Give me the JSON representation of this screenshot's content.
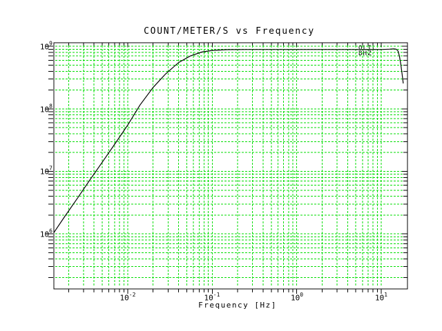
{
  "title": "COUNT/METER/S vs Frequency",
  "station_label": {
    "line1": "OLIL",
    "line2": "BHZ"
  },
  "x_axis": {
    "label": "Frequency [Hz]",
    "ticks": [
      {
        "base": "10",
        "exp": "-2"
      },
      {
        "base": "10",
        "exp": "-1"
      },
      {
        "base": "10",
        "exp": "0"
      },
      {
        "base": "10",
        "exp": "1"
      }
    ]
  },
  "y_axis": {
    "ticks": [
      {
        "base": "10",
        "exp": "9"
      },
      {
        "base": "10",
        "exp": "8"
      },
      {
        "base": "10",
        "exp": "7"
      },
      {
        "base": "10",
        "exp": "6"
      }
    ]
  },
  "colors": {
    "grid": "#00dd00",
    "curve": "#000000",
    "frame": "#000000",
    "background": "#ffffff"
  },
  "chart_data": {
    "type": "line",
    "title": "COUNT/METER/S vs Frequency",
    "xlabel": "Frequency [Hz]",
    "ylabel": "COUNT/METER/S",
    "x_scale": "log",
    "y_scale": "log",
    "xlim": [
      0.00134,
      20.4
    ],
    "ylim": [
      132000,
      1140000000
    ],
    "x_major_ticks": [
      0.01,
      0.1,
      1,
      10
    ],
    "y_major_ticks": [
      1000000,
      10000000,
      100000000,
      1000000000
    ],
    "grid": {
      "style": "dashed",
      "minor_lines": true,
      "color": "#00dd00"
    },
    "legend_position": "top-right-inside",
    "series": [
      {
        "name": "OLIL BHZ",
        "color": "#000000",
        "points": [
          [
            0.00134,
            1050000
          ],
          [
            0.0018,
            1900000
          ],
          [
            0.0025,
            3600000
          ],
          [
            0.0035,
            7000000
          ],
          [
            0.005,
            14000000
          ],
          [
            0.007,
            27000000
          ],
          [
            0.01,
            55000000
          ],
          [
            0.014,
            115000000
          ],
          [
            0.02,
            220000000
          ],
          [
            0.028,
            360000000
          ],
          [
            0.04,
            550000000
          ],
          [
            0.055,
            700000000
          ],
          [
            0.075,
            810000000
          ],
          [
            0.1,
            860000000
          ],
          [
            0.15,
            885000000
          ],
          [
            0.25,
            890000000
          ],
          [
            0.5,
            890000000
          ],
          [
            1.0,
            890000000
          ],
          [
            2.0,
            890000000
          ],
          [
            4.0,
            890000000
          ],
          [
            7.0,
            890000000
          ],
          [
            10.0,
            890000000
          ],
          [
            12.5,
            900000000
          ],
          [
            14.0,
            910000000
          ],
          [
            15.0,
            900000000
          ],
          [
            15.8,
            840000000
          ],
          [
            16.4,
            690000000
          ],
          [
            17.0,
            520000000
          ],
          [
            17.5,
            390000000
          ],
          [
            18.0,
            290000000
          ],
          [
            18.2,
            255000000
          ]
        ]
      }
    ]
  }
}
